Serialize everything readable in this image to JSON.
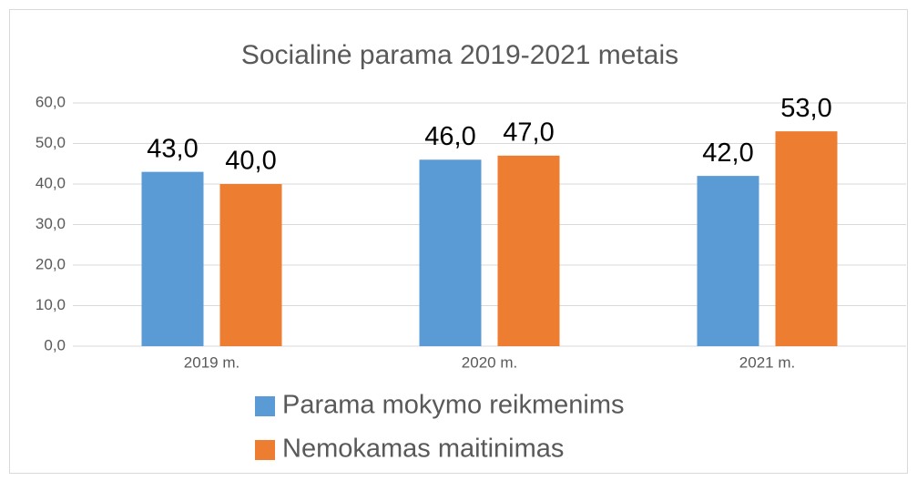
{
  "chart_data": {
    "type": "bar",
    "title": "Socialinė parama 2019-2021 metais",
    "categories": [
      "2019 m.",
      "2020 m.",
      "2021 m."
    ],
    "series": [
      {
        "name": "Parama mokymo reikmenims",
        "color": "#5b9bd5",
        "values": [
          43,
          46,
          42
        ],
        "value_labels": [
          "43,0",
          "46,0",
          "42,0"
        ]
      },
      {
        "name": "Nemokamas maitinimas",
        "color": "#ed7d31",
        "values": [
          40,
          47,
          53
        ],
        "value_labels": [
          "40,0",
          "47,0",
          "53,0"
        ]
      }
    ],
    "ylim": [
      0,
      60
    ],
    "yticks": [
      {
        "value": 0,
        "label": "0,0"
      },
      {
        "value": 10,
        "label": "10,0"
      },
      {
        "value": 20,
        "label": "20,0"
      },
      {
        "value": 30,
        "label": "30,0"
      },
      {
        "value": 40,
        "label": "40,0"
      },
      {
        "value": 50,
        "label": "50,0"
      },
      {
        "value": 60,
        "label": "60,0"
      }
    ],
    "grid": true,
    "legend": "bottom"
  }
}
